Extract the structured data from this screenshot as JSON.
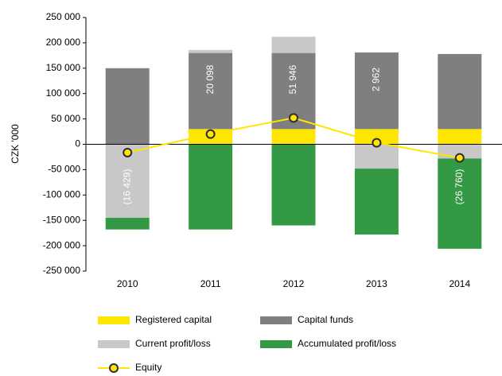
{
  "chart_data": {
    "type": "stacked-bar-line",
    "y_label": "CZK '000",
    "categories": [
      "2010",
      "2011",
      "2012",
      "2013",
      "2014"
    ],
    "ylim": [
      -250000,
      250000
    ],
    "yticks": [
      {
        "value": -250000,
        "label": "-250 000"
      },
      {
        "value": -200000,
        "label": "-200 000"
      },
      {
        "value": -150000,
        "label": "-150 000"
      },
      {
        "value": -100000,
        "label": "-100 000"
      },
      {
        "value": -50000,
        "label": "-50 000"
      },
      0,
      {
        "value": 50000,
        "label": "50 000"
      },
      {
        "value": 100000,
        "label": "100 000"
      },
      {
        "value": 150000,
        "label": "150 000"
      },
      {
        "value": 200000,
        "label": "200 000"
      },
      {
        "value": 250000,
        "label": "250 000"
      }
    ],
    "series": [
      {
        "name": "Registered capital",
        "color": "#ffe600",
        "kind": "bar",
        "values": [
          null,
          30000,
          30000,
          30000,
          30000
        ]
      },
      {
        "name": "Capital funds",
        "color": "#7f7f7f",
        "kind": "bar",
        "values": [
          150000,
          150000,
          150000,
          151000,
          148000
        ]
      },
      {
        "name": "Current profit/loss",
        "color": "#c8c8c8",
        "kind": "bar",
        "values": [
          -145000,
          6000,
          32000,
          -48000,
          -28000
        ]
      },
      {
        "name": "Accumulated profit/loss",
        "color": "#339944",
        "kind": "bar",
        "values": [
          -23000,
          -168000,
          -160000,
          -130000,
          -178000
        ]
      },
      {
        "name": "Equity",
        "color": "#ffe600",
        "kind": "line",
        "values": [
          -16429,
          20098,
          51946,
          2962,
          -26760
        ],
        "value_labels": [
          "(16 429)",
          "20 098",
          "51 946",
          "2 962",
          "(26 760)"
        ]
      }
    ]
  }
}
